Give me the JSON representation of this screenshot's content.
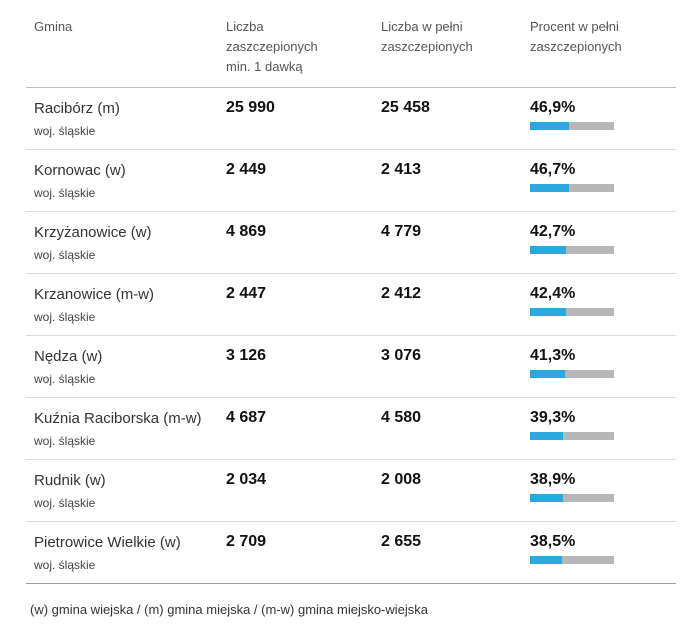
{
  "headers": {
    "gmina": "Gmina",
    "first_dose": "Liczba\nzaszczepionych\nmin. 1 dawką",
    "fully": "Liczba w pełni\nzaszczepionych",
    "percent": "Procent w pełni\nzaszczepionych"
  },
  "rows": [
    {
      "name": "Racibórz (m)",
      "voivodeship": "woj. śląskie",
      "first_dose": "25 990",
      "fully": "25 458",
      "percent_label": "46,9%",
      "percent": 46.9
    },
    {
      "name": "Kornowac (w)",
      "voivodeship": "woj. śląskie",
      "first_dose": "2 449",
      "fully": "2 413",
      "percent_label": "46,7%",
      "percent": 46.7
    },
    {
      "name": "Krzyżanowice (w)",
      "voivodeship": "woj. śląskie",
      "first_dose": "4 869",
      "fully": "4 779",
      "percent_label": "42,7%",
      "percent": 42.7
    },
    {
      "name": "Krzanowice (m-w)",
      "voivodeship": "woj. śląskie",
      "first_dose": "2 447",
      "fully": "2 412",
      "percent_label": "42,4%",
      "percent": 42.4
    },
    {
      "name": "Nędza (w)",
      "voivodeship": "woj. śląskie",
      "first_dose": "3 126",
      "fully": "3 076",
      "percent_label": "41,3%",
      "percent": 41.3
    },
    {
      "name": "Kuźnia Raciborska (m-w)",
      "voivodeship": "woj. śląskie",
      "first_dose": "4 687",
      "fully": "4 580",
      "percent_label": "39,3%",
      "percent": 39.3
    },
    {
      "name": "Rudnik (w)",
      "voivodeship": "woj. śląskie",
      "first_dose": "2 034",
      "fully": "2 008",
      "percent_label": "38,9%",
      "percent": 38.9
    },
    {
      "name": "Pietrowice Wielkie (w)",
      "voivodeship": "woj. śląskie",
      "first_dose": "2 709",
      "fully": "2 655",
      "percent_label": "38,5%",
      "percent": 38.5
    }
  ],
  "footnote": "(w) gmina wiejska / (m) gmina miejska / (m-w) gmina miejsko-wiejska",
  "colors": {
    "bar_fill": "#29a9e0",
    "bar_track": "#b7b7b7"
  }
}
